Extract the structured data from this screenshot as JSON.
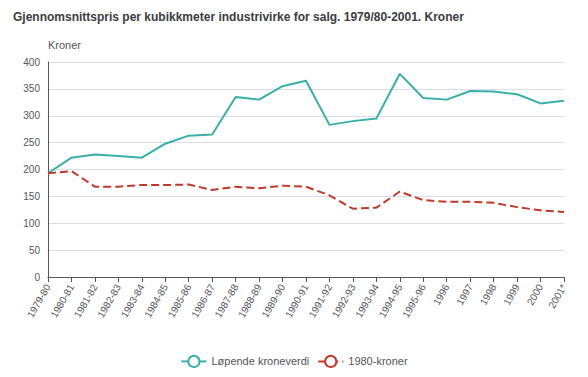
{
  "chart_data": {
    "type": "line",
    "title": "Gjennomsnittspris per kubikkmeter industrivirke for salg. 1979/80-2001. Kroner",
    "ylabel": "Kroner",
    "categories": [
      "1979-80",
      "1980-81",
      "1981-82",
      "1982-83",
      "1983-84",
      "1984-85",
      "1985-86",
      "1986-87",
      "1987-88",
      "1988-89",
      "1989-90",
      "1990-91",
      "1991-92",
      "1992-93",
      "1993-94",
      "1994-95",
      "1995-96",
      "1996",
      "1997",
      "1998",
      "1999",
      "2000",
      "2001*"
    ],
    "series": [
      {
        "name": "Løpende kroneverdi",
        "color": "#3aafa9",
        "line_style": "solid",
        "values": [
          193,
          222,
          228,
          225,
          222,
          248,
          263,
          265,
          335,
          330,
          355,
          365,
          283,
          290,
          295,
          378,
          333,
          330,
          346,
          345,
          340,
          323,
          328
        ]
      },
      {
        "name": "1980-kroner",
        "color": "#c0392b",
        "line_style": "dashed",
        "values": [
          193,
          197,
          168,
          168,
          171,
          171,
          172,
          162,
          168,
          165,
          170,
          168,
          152,
          127,
          129,
          159,
          143,
          140,
          140,
          138,
          130,
          124,
          121
        ]
      }
    ],
    "ylim": [
      0,
      400
    ],
    "yticks": [
      0,
      50,
      100,
      150,
      200,
      250,
      300,
      350,
      400
    ],
    "grid": true,
    "legend": "bottom"
  }
}
